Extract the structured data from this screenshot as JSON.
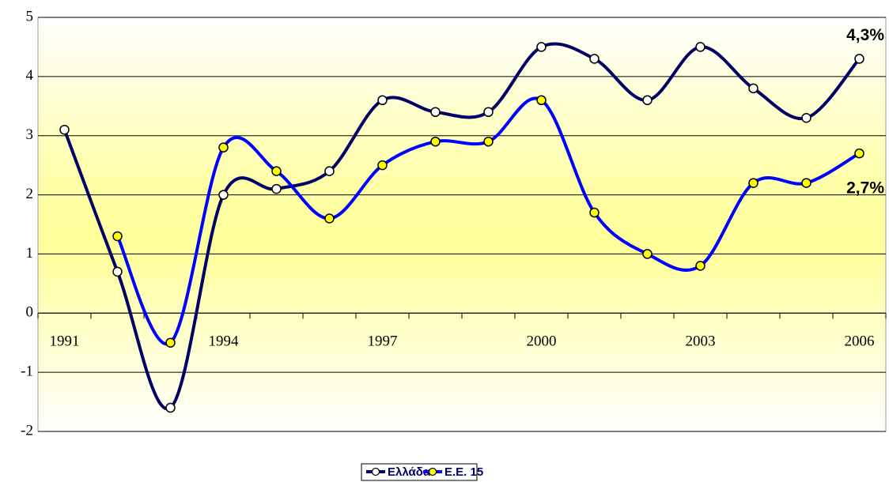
{
  "chart_data": {
    "type": "line",
    "categories": [
      "1991",
      null,
      null,
      "1994",
      null,
      null,
      "1997",
      null,
      null,
      "2000",
      null,
      null,
      "2003",
      null,
      null,
      "2006"
    ],
    "series": [
      {
        "name": "Ελλάδα",
        "color": "#000066",
        "marker": "#ffffff",
        "values": [
          3.1,
          0.7,
          -1.6,
          2.0,
          2.1,
          2.4,
          3.6,
          3.4,
          3.4,
          4.5,
          4.3,
          3.6,
          4.5,
          3.8,
          3.3,
          4.3
        ],
        "value_labels": [
          null,
          null,
          null,
          null,
          null,
          null,
          null,
          null,
          null,
          null,
          null,
          null,
          null,
          null,
          null,
          "4,3%"
        ]
      },
      {
        "name": "Ε.Ε. 15",
        "color": "#0000ff",
        "marker": "#ffff00",
        "values": [
          null,
          1.3,
          -0.5,
          2.8,
          2.4,
          1.6,
          2.5,
          2.9,
          2.9,
          3.6,
          1.7,
          1.0,
          0.8,
          2.2,
          2.2,
          2.7
        ],
        "value_labels": [
          null,
          null,
          null,
          null,
          null,
          null,
          null,
          null,
          null,
          null,
          null,
          null,
          null,
          null,
          null,
          "2,7%"
        ]
      }
    ],
    "ylim": [
      -2,
      5
    ],
    "yticks": [
      -2,
      -1,
      0,
      1,
      2,
      3,
      4,
      5
    ],
    "grid": true,
    "legend": "bottom"
  }
}
